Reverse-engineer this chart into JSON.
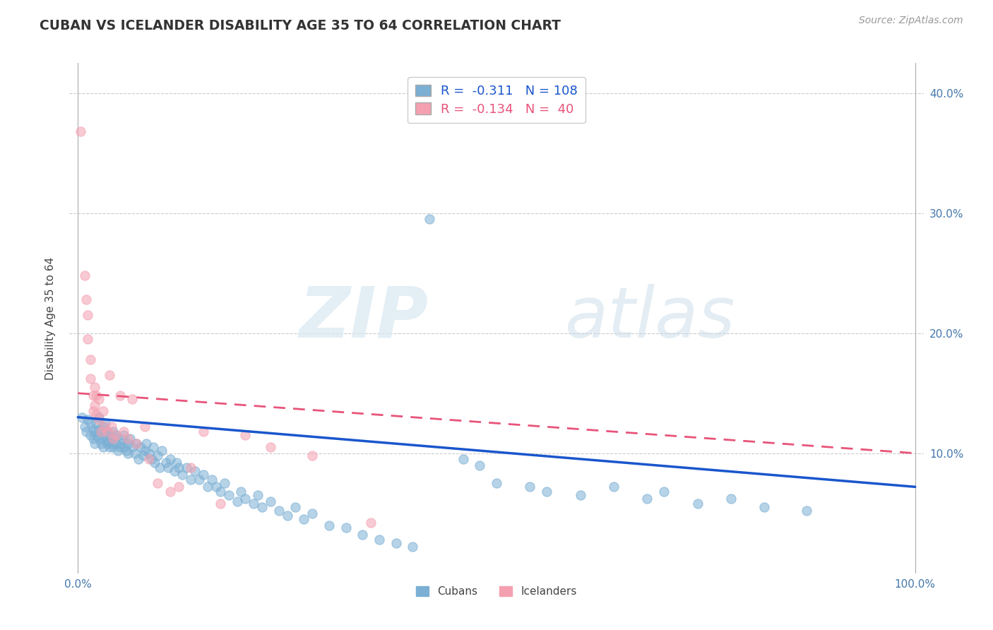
{
  "title": "CUBAN VS ICELANDER DISABILITY AGE 35 TO 64 CORRELATION CHART",
  "source": "Source: ZipAtlas.com",
  "ylabel": "Disability Age 35 to 64",
  "xlim": [
    -0.01,
    1.01
  ],
  "ylim": [
    0.0,
    0.425
  ],
  "xtick_positions": [
    0.0,
    0.1,
    0.2,
    0.3,
    0.4,
    0.5,
    0.6,
    0.7,
    0.8,
    0.9,
    1.0
  ],
  "xtick_labels": [
    "0.0%",
    "",
    "",
    "",
    "",
    "",
    "",
    "",
    "",
    "",
    "100.0%"
  ],
  "ytick_positions": [
    0.0,
    0.1,
    0.2,
    0.3,
    0.4
  ],
  "ytick_labels": [
    "",
    "10.0%",
    "20.0%",
    "30.0%",
    "40.0%"
  ],
  "cuban_color": "#7bafd4",
  "icelander_color": "#f4a0b0",
  "cuban_line_color": "#1a56cc",
  "icelander_line_color": "#e8547a",
  "cuban_R": -0.311,
  "cuban_N": 108,
  "icelander_R": -0.134,
  "icelander_N": 40,
  "watermark_zip": "ZIP",
  "watermark_atlas": "atlas",
  "grid_color": "#cccccc",
  "cuban_x": [
    0.005,
    0.008,
    0.01,
    0.012,
    0.015,
    0.015,
    0.018,
    0.018,
    0.02,
    0.02,
    0.022,
    0.022,
    0.025,
    0.025,
    0.025,
    0.028,
    0.028,
    0.03,
    0.03,
    0.03,
    0.032,
    0.033,
    0.035,
    0.035,
    0.035,
    0.038,
    0.038,
    0.04,
    0.04,
    0.042,
    0.042,
    0.045,
    0.045,
    0.048,
    0.05,
    0.05,
    0.052,
    0.055,
    0.055,
    0.058,
    0.06,
    0.06,
    0.062,
    0.065,
    0.068,
    0.07,
    0.072,
    0.075,
    0.078,
    0.08,
    0.082,
    0.085,
    0.088,
    0.09,
    0.092,
    0.095,
    0.098,
    0.1,
    0.105,
    0.108,
    0.11,
    0.115,
    0.118,
    0.12,
    0.125,
    0.13,
    0.135,
    0.14,
    0.145,
    0.15,
    0.155,
    0.16,
    0.165,
    0.17,
    0.175,
    0.18,
    0.19,
    0.195,
    0.2,
    0.21,
    0.215,
    0.22,
    0.23,
    0.24,
    0.25,
    0.26,
    0.27,
    0.28,
    0.3,
    0.32,
    0.34,
    0.36,
    0.38,
    0.4,
    0.42,
    0.46,
    0.48,
    0.5,
    0.54,
    0.56,
    0.6,
    0.64,
    0.68,
    0.7,
    0.74,
    0.78,
    0.82,
    0.87
  ],
  "cuban_y": [
    0.13,
    0.122,
    0.118,
    0.128,
    0.125,
    0.115,
    0.12,
    0.112,
    0.118,
    0.108,
    0.125,
    0.115,
    0.13,
    0.12,
    0.112,
    0.118,
    0.108,
    0.122,
    0.112,
    0.105,
    0.115,
    0.125,
    0.118,
    0.11,
    0.108,
    0.115,
    0.105,
    0.112,
    0.108,
    0.118,
    0.105,
    0.115,
    0.108,
    0.102,
    0.112,
    0.105,
    0.108,
    0.115,
    0.105,
    0.102,
    0.108,
    0.1,
    0.112,
    0.105,
    0.1,
    0.108,
    0.095,
    0.105,
    0.098,
    0.102,
    0.108,
    0.1,
    0.095,
    0.105,
    0.092,
    0.098,
    0.088,
    0.102,
    0.092,
    0.088,
    0.095,
    0.085,
    0.092,
    0.088,
    0.082,
    0.088,
    0.078,
    0.085,
    0.078,
    0.082,
    0.072,
    0.078,
    0.072,
    0.068,
    0.075,
    0.065,
    0.06,
    0.068,
    0.062,
    0.058,
    0.065,
    0.055,
    0.06,
    0.052,
    0.048,
    0.055,
    0.045,
    0.05,
    0.04,
    0.038,
    0.032,
    0.028,
    0.025,
    0.022,
    0.295,
    0.095,
    0.09,
    0.075,
    0.072,
    0.068,
    0.065,
    0.072,
    0.062,
    0.068,
    0.058,
    0.062,
    0.055,
    0.052
  ],
  "icelander_x": [
    0.003,
    0.008,
    0.01,
    0.012,
    0.012,
    0.015,
    0.015,
    0.018,
    0.018,
    0.02,
    0.02,
    0.022,
    0.022,
    0.025,
    0.025,
    0.028,
    0.03,
    0.032,
    0.035,
    0.038,
    0.04,
    0.042,
    0.045,
    0.05,
    0.055,
    0.06,
    0.065,
    0.07,
    0.08,
    0.085,
    0.095,
    0.11,
    0.12,
    0.135,
    0.15,
    0.17,
    0.2,
    0.23,
    0.28,
    0.35
  ],
  "icelander_y": [
    0.368,
    0.248,
    0.228,
    0.215,
    0.195,
    0.178,
    0.162,
    0.148,
    0.135,
    0.155,
    0.14,
    0.148,
    0.132,
    0.145,
    0.128,
    0.118,
    0.135,
    0.122,
    0.118,
    0.165,
    0.122,
    0.112,
    0.115,
    0.148,
    0.118,
    0.112,
    0.145,
    0.108,
    0.122,
    0.095,
    0.075,
    0.068,
    0.072,
    0.088,
    0.118,
    0.058,
    0.115,
    0.105,
    0.098,
    0.042
  ]
}
